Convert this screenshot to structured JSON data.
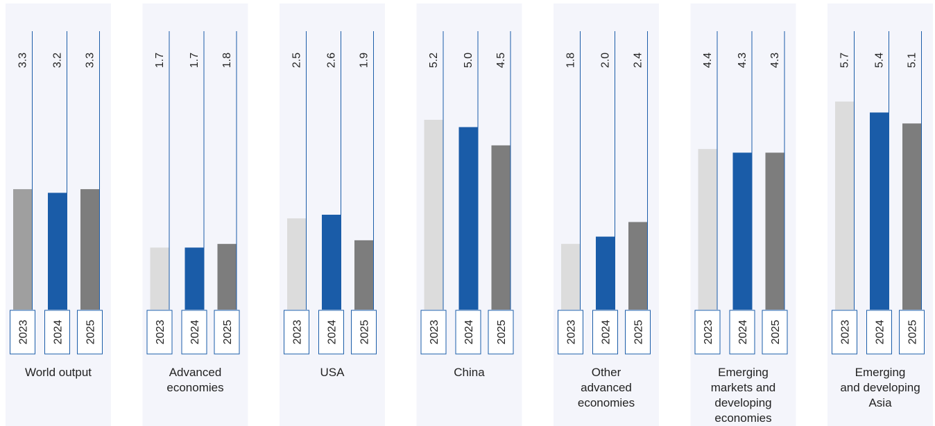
{
  "chart_data": {
    "type": "bar",
    "title": "",
    "xlabel": "",
    "ylabel": "",
    "grid": false,
    "legend": "none",
    "years": [
      "2023",
      "2024",
      "2025"
    ],
    "series_colors": [
      "#dcdcdc",
      "#1a5ca8",
      "#7d7d7d"
    ],
    "first_group_colors": [
      "#9f9f9f",
      "#1a5ca8",
      "#7d7d7d"
    ],
    "panel_background": "#f4f5fb",
    "frame_color": "#1a5ca8",
    "groups": [
      {
        "label": [
          "World output"
        ],
        "values": [
          3.3,
          3.2,
          3.3
        ],
        "value_labels": [
          "3.3",
          "3.2",
          "3.3"
        ]
      },
      {
        "label": [
          "Advanced",
          "economies"
        ],
        "values": [
          1.7,
          1.7,
          1.8
        ],
        "value_labels": [
          "1.7",
          "1.7",
          "1.8"
        ]
      },
      {
        "label": [
          "USA"
        ],
        "values": [
          2.5,
          2.6,
          1.9
        ],
        "value_labels": [
          "2.5",
          "2.6",
          "1.9"
        ]
      },
      {
        "label": [
          "China"
        ],
        "values": [
          5.2,
          5.0,
          4.5
        ],
        "value_labels": [
          "5.2",
          "5.0",
          "4.5"
        ]
      },
      {
        "label": [
          "Other",
          "advanced",
          "economies"
        ],
        "values": [
          1.8,
          2.0,
          2.4
        ],
        "value_labels": [
          "1.8",
          "2.0",
          "2.4"
        ]
      },
      {
        "label": [
          "Emerging",
          "markets and",
          "developing",
          "economies"
        ],
        "values": [
          4.4,
          4.3,
          4.3
        ],
        "value_labels": [
          "4.4",
          "4.3",
          "4.3"
        ]
      },
      {
        "label": [
          "Emerging",
          "and developing",
          "Asia"
        ],
        "values": [
          5.7,
          5.4,
          5.1
        ],
        "value_labels": [
          "5.7",
          "5.4",
          "5.1"
        ]
      }
    ]
  }
}
